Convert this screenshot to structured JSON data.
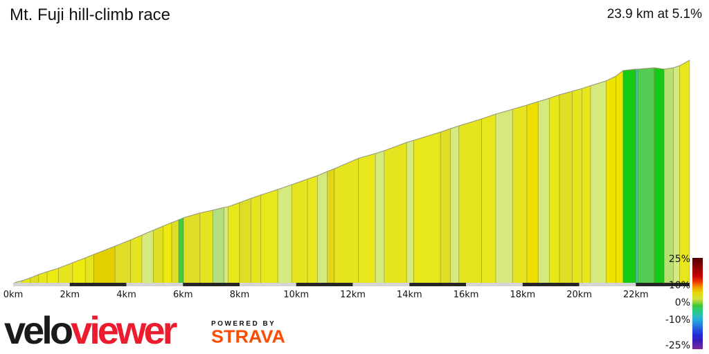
{
  "header": {
    "title": "Mt. Fuji hill-climb race",
    "summary": "23.9 km at 5.1%"
  },
  "chart_data": {
    "type": "area",
    "title": "Mt. Fuji hill-climb race",
    "subtitle": "23.9 km at 5.1%",
    "total_distance_km": 23.9,
    "average_gradient_pct": 5.1,
    "x_range_km": [
      0,
      23.9
    ],
    "x_ticks": [
      "0km",
      "2km",
      "4km",
      "6km",
      "8km",
      "10km",
      "12km",
      "14km",
      "16km",
      "18km",
      "20km",
      "22km"
    ],
    "x_tick_values": [
      0,
      2,
      4,
      6,
      8,
      10,
      12,
      14,
      16,
      18,
      20,
      22
    ],
    "axis_bar": {
      "interval_km": 2,
      "light_color": "#d4d4d4",
      "dark_color": "#262626"
    },
    "segments_format": [
      "start_km",
      "end_km",
      "start_height_px",
      "end_height_px",
      "gradient_color"
    ],
    "segments": [
      [
        0.0,
        0.12,
        0,
        2,
        "#d9c400"
      ],
      [
        0.12,
        0.32,
        2,
        4,
        "#d9ea7c"
      ],
      [
        0.32,
        0.6,
        4,
        8,
        "#e8e71c"
      ],
      [
        0.6,
        0.9,
        8,
        13,
        "#dfde24"
      ],
      [
        0.9,
        1.2,
        13,
        17,
        "#e8e71c"
      ],
      [
        1.2,
        1.6,
        17,
        22,
        "#eeea10"
      ],
      [
        1.6,
        2.1,
        22,
        30,
        "#e5e41e"
      ],
      [
        2.1,
        2.55,
        30,
        37,
        "#eeea10"
      ],
      [
        2.55,
        2.85,
        37,
        42,
        "#e5e41e"
      ],
      [
        2.85,
        3.6,
        42,
        54,
        "#e3cf00"
      ],
      [
        3.6,
        4.15,
        54,
        63,
        "#dfde24"
      ],
      [
        4.15,
        4.55,
        63,
        70,
        "#e5e41e"
      ],
      [
        4.55,
        4.95,
        70,
        77,
        "#d6e97c"
      ],
      [
        4.95,
        5.3,
        77,
        83,
        "#dfde24"
      ],
      [
        5.3,
        5.6,
        83,
        88,
        "#eeea10"
      ],
      [
        5.6,
        5.85,
        88,
        92,
        "#dfde24"
      ],
      [
        5.85,
        6.02,
        92,
        95,
        "#3fca3f"
      ],
      [
        6.02,
        6.6,
        95,
        102,
        "#dfde24"
      ],
      [
        6.6,
        7.05,
        102,
        106,
        "#e5e41e"
      ],
      [
        7.05,
        7.45,
        106,
        110,
        "#b2dd80"
      ],
      [
        7.45,
        7.6,
        110,
        111,
        "#d6e97c"
      ],
      [
        7.6,
        8.0,
        111,
        117,
        "#e8e71c"
      ],
      [
        8.0,
        8.4,
        117,
        123,
        "#dfde24"
      ],
      [
        8.4,
        8.75,
        123,
        128,
        "#e5e41e"
      ],
      [
        8.75,
        9.35,
        128,
        136,
        "#e8e71c"
      ],
      [
        9.35,
        9.85,
        136,
        143,
        "#d6e97c"
      ],
      [
        9.85,
        10.4,
        143,
        151,
        "#e5e41e"
      ],
      [
        10.4,
        10.75,
        151,
        156,
        "#e8e71c"
      ],
      [
        10.75,
        11.1,
        156,
        162,
        "#d6e97c"
      ],
      [
        11.1,
        11.35,
        162,
        166,
        "#e2d512"
      ],
      [
        11.35,
        12.2,
        166,
        181,
        "#e5e41e"
      ],
      [
        12.2,
        12.8,
        181,
        188,
        "#e8e71c"
      ],
      [
        12.8,
        13.11,
        188,
        192,
        "#d6e97c"
      ],
      [
        13.11,
        13.9,
        192,
        204,
        "#e5e41e"
      ],
      [
        13.9,
        14.15,
        204,
        207,
        "#d6e97c"
      ],
      [
        14.15,
        15.1,
        207,
        219,
        "#e8e71c"
      ],
      [
        15.1,
        15.45,
        219,
        224,
        "#dfde24"
      ],
      [
        15.45,
        15.75,
        224,
        228,
        "#d6e97c"
      ],
      [
        15.75,
        16.55,
        228,
        238,
        "#e5e41e"
      ],
      [
        16.55,
        17.05,
        238,
        245,
        "#e8e71c"
      ],
      [
        17.05,
        17.65,
        245,
        252,
        "#d6e97c"
      ],
      [
        17.65,
        18.15,
        252,
        258,
        "#e5e41e"
      ],
      [
        18.15,
        18.55,
        258,
        263,
        "#eede00"
      ],
      [
        18.55,
        18.95,
        263,
        268,
        "#d6e97c"
      ],
      [
        18.95,
        19.3,
        268,
        273,
        "#e8e71c"
      ],
      [
        19.3,
        19.75,
        273,
        278,
        "#dfde24"
      ],
      [
        19.75,
        20.1,
        278,
        282,
        "#e5e41e"
      ],
      [
        20.1,
        20.4,
        282,
        286,
        "#e8e71c"
      ],
      [
        20.4,
        20.95,
        286,
        293,
        "#d6e97c"
      ],
      [
        20.95,
        21.3,
        293,
        300,
        "#eee200"
      ],
      [
        21.3,
        21.55,
        300,
        308,
        "#eee200"
      ],
      [
        21.55,
        22.0,
        308,
        310,
        "#17c917"
      ],
      [
        22.0,
        22.08,
        310,
        310,
        "#3cc4a0"
      ],
      [
        22.08,
        22.65,
        310,
        312,
        "#52cc52"
      ],
      [
        22.65,
        23.0,
        312,
        310,
        "#17c917"
      ],
      [
        23.0,
        23.33,
        310,
        312,
        "#b8e070"
      ],
      [
        23.33,
        23.55,
        312,
        315,
        "#d6e97c"
      ],
      [
        23.55,
        23.9,
        315,
        323,
        "#e8e71c"
      ]
    ],
    "gradient_legend": {
      "labels": [
        "25%",
        "10%",
        "0%",
        "-10%",
        "-25%"
      ],
      "values": [
        25,
        10,
        0,
        -10,
        -25
      ],
      "stops": [
        [
          "#4c0000",
          0
        ],
        [
          "#8f0000",
          10
        ],
        [
          "#c80000",
          20
        ],
        [
          "#e83800",
          26
        ],
        [
          "#f07800",
          30
        ],
        [
          "#eab200",
          34
        ],
        [
          "#e4d80a",
          38
        ],
        [
          "#d2e23c",
          45
        ],
        [
          "#8ed23c",
          49
        ],
        [
          "#38c838",
          52
        ],
        [
          "#30c878",
          57
        ],
        [
          "#2cc0aa",
          62
        ],
        [
          "#28aed2",
          67
        ],
        [
          "#2484e0",
          73
        ],
        [
          "#2450e0",
          79
        ],
        [
          "#2428d2",
          85
        ],
        [
          "#3c1cb4",
          91
        ],
        [
          "#7a28a0",
          100
        ]
      ]
    }
  },
  "footer": {
    "brand_black": "velo",
    "brand_red": "viewer",
    "brand_black_color": "#1a1a1a",
    "brand_red_color": "#ed1b2e",
    "powered_by": "POWERED BY",
    "strava": "STRAVA",
    "strava_color": "#fc4c02"
  }
}
